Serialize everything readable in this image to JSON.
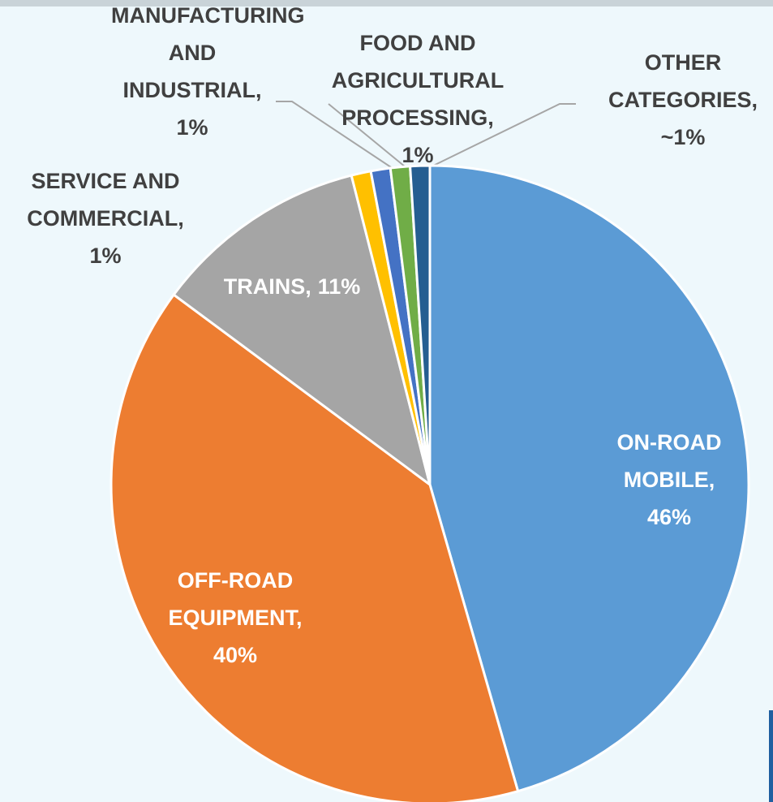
{
  "chart_data": {
    "type": "pie",
    "categories": [
      "ON-ROAD MOBILE,",
      "OFF-ROAD EQUIPMENT,",
      "TRAINS,",
      "SERVICE AND COMMERCIAL,",
      "MANUFACTURING AND INDUSTRIAL,",
      "FOOD AND AGRICULTURAL PROCESSING,",
      "OTHER CATEGORIES,"
    ],
    "values": [
      46,
      40,
      11,
      1,
      1,
      1,
      1
    ],
    "value_labels": [
      "46%",
      "40%",
      "11%",
      "1%",
      "1%",
      "1%",
      "~1%"
    ],
    "colors": [
      "#5b9bd5",
      "#ed7d31",
      "#a5a5a5",
      "#ffc000",
      "#4472c4",
      "#70ad47",
      "#255e91"
    ]
  }
}
